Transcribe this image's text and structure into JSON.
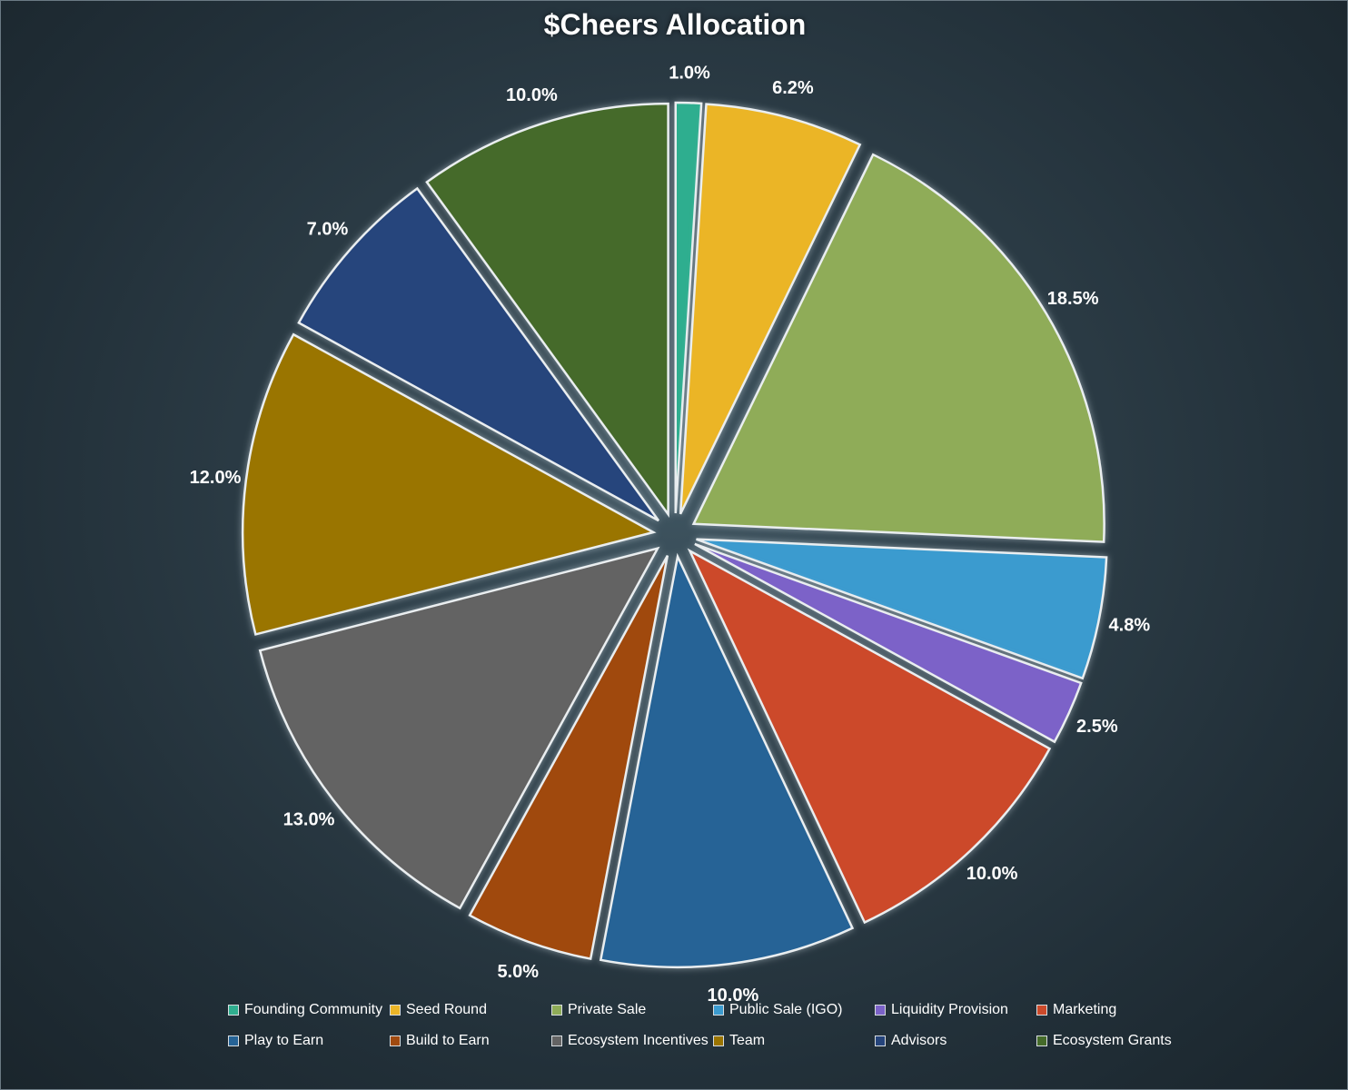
{
  "chart_data": {
    "type": "pie",
    "title": "$Cheers Allocation",
    "exploded": true,
    "legend_position": "bottom",
    "slices": [
      {
        "label": "Founding Community",
        "value": 1.0,
        "value_label": "1.0%",
        "color": "#2fae8f"
      },
      {
        "label": "Seed Round",
        "value": 6.2,
        "value_label": "6.2%",
        "color": "#ebb527"
      },
      {
        "label": "Private Sale",
        "value": 18.5,
        "value_label": "18.5%",
        "color": "#8fac58"
      },
      {
        "label": "Public Sale (IGO)",
        "value": 4.8,
        "value_label": "4.8%",
        "color": "#3b9bcf"
      },
      {
        "label": "Liquidity Provision",
        "value": 2.5,
        "value_label": "2.5%",
        "color": "#7b62c8"
      },
      {
        "label": "Marketing",
        "value": 10.0,
        "value_label": "10.0%",
        "color": "#cc4a2b"
      },
      {
        "label": "Play to Earn",
        "value": 10.0,
        "value_label": "10.0%",
        "color": "#256396"
      },
      {
        "label": "Build to Earn",
        "value": 5.0,
        "value_label": "5.0%",
        "color": "#a04a10"
      },
      {
        "label": "Ecosystem Incentives",
        "value": 13.0,
        "value_label": "13.0%",
        "color": "#646464"
      },
      {
        "label": "Team",
        "value": 12.0,
        "value_label": "12.0%",
        "color": "#9a7400"
      },
      {
        "label": "Advisors",
        "value": 7.0,
        "value_label": "7.0%",
        "color": "#25447b"
      },
      {
        "label": "Ecosystem Grants",
        "value": 10.0,
        "value_label": "10.0%",
        "color": "#456b2a"
      }
    ]
  }
}
